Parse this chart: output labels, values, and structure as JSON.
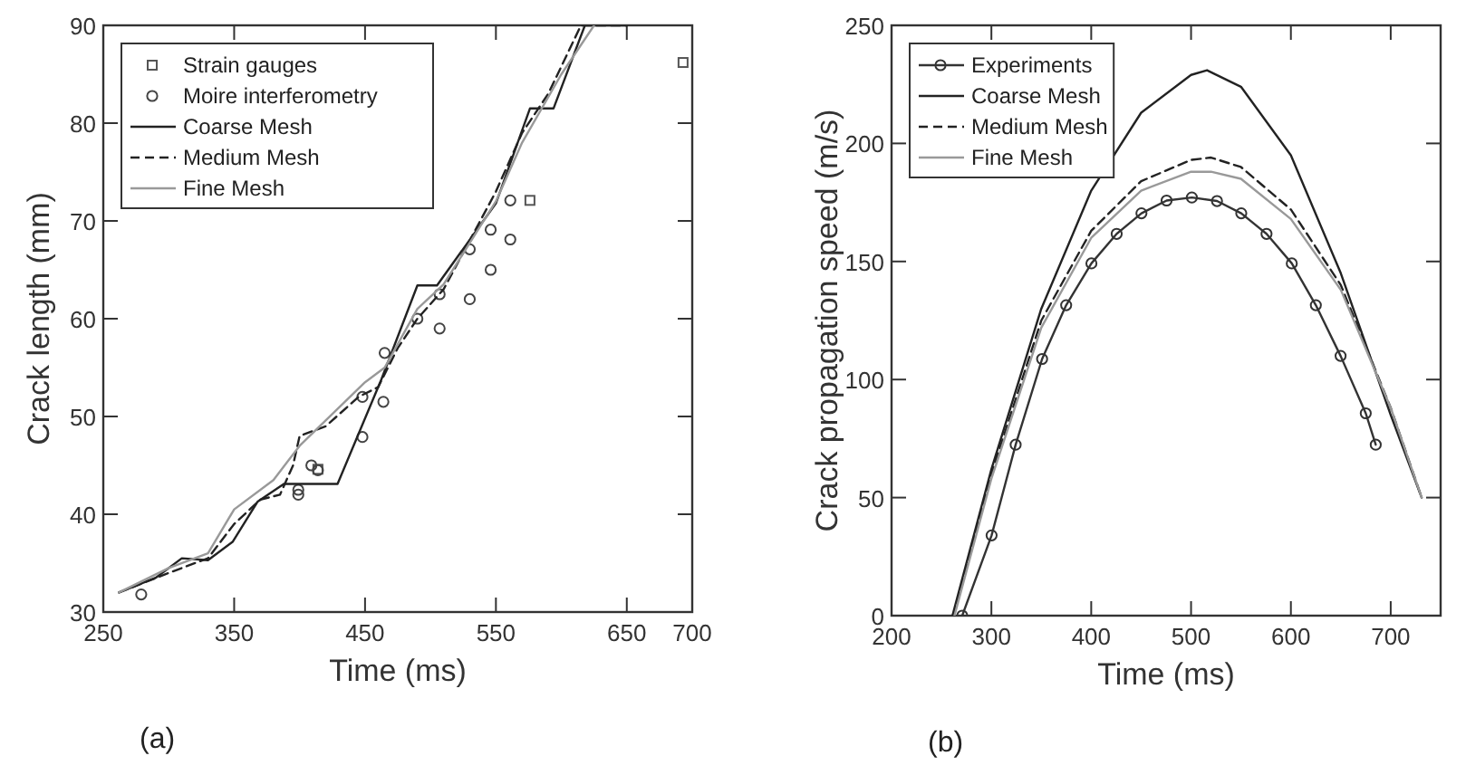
{
  "chart_data": [
    {
      "type": "line",
      "xlabel": "Time (ms)",
      "ylabel": "Crack length (mm)",
      "xlim": [
        250,
        700
      ],
      "xticks": [
        250,
        350,
        450,
        550,
        650,
        700
      ],
      "ylim": [
        30,
        90
      ],
      "yticks": [
        30,
        40,
        50,
        60,
        70,
        80,
        90
      ],
      "legend": "top left",
      "grid": false,
      "annotations": [
        "(a)"
      ],
      "series": [
        {
          "name": "Strain gauges",
          "type": "scatter",
          "marker": "square",
          "color": "#555555",
          "x": [
            414,
            576,
            693
          ],
          "values": [
            44.6,
            72.1,
            86.2
          ]
        },
        {
          "name": "Moire interferometry",
          "type": "scatter",
          "marker": "circle",
          "color": "#444444",
          "x": [
            279,
            399,
            399,
            409,
            414,
            448,
            448,
            464,
            465,
            490,
            507,
            507,
            530,
            530,
            546,
            546,
            561,
            561
          ],
          "values": [
            31.8,
            42.5,
            42,
            45,
            44.5,
            52,
            47.9,
            51.5,
            56.5,
            60,
            59,
            62.5,
            62,
            67.1,
            65,
            69.1,
            72.1,
            68.1
          ]
        },
        {
          "name": "Coarse Mesh",
          "color": "#222222",
          "line_style": "solid",
          "x": [
            262,
            290,
            310,
            330,
            349,
            368,
            388,
            429,
            462.5,
            490,
            505,
            550,
            576,
            594,
            618,
            650
          ],
          "values": [
            32,
            33.5,
            35.5,
            35.3,
            37.2,
            41.3,
            43.1,
            43.1,
            53.8,
            63.4,
            63.4,
            71.8,
            81.5,
            81.5,
            90,
            90
          ]
        },
        {
          "name": "Medium Mesh",
          "color": "#222222",
          "line_style": "dashed",
          "x": [
            262,
            300,
            330,
            350,
            370,
            385,
            395,
            400,
            420,
            445,
            460,
            475,
            490,
            510,
            530,
            550,
            570,
            590,
            615,
            650
          ],
          "values": [
            32,
            34,
            35.5,
            39,
            41.5,
            42,
            45,
            48,
            49,
            52,
            53,
            57,
            60,
            63,
            68,
            73,
            79,
            83,
            90,
            90
          ]
        },
        {
          "name": "Fine Mesh",
          "color": "#999999",
          "line_style": "solid",
          "x": [
            262,
            300,
            330,
            350,
            380,
            400,
            450,
            465,
            490,
            510,
            550,
            570,
            600,
            625
          ],
          "values": [
            32,
            34.5,
            36,
            40.5,
            43.5,
            47,
            53.5,
            55,
            61,
            63.5,
            72,
            78,
            85,
            90
          ]
        }
      ]
    },
    {
      "type": "line",
      "xlabel": "Time (ms)",
      "ylabel": "Crack propagation speed (m/s)",
      "xlim": [
        200,
        750
      ],
      "xticks": [
        200,
        300,
        400,
        500,
        600,
        700
      ],
      "ylim": [
        0,
        250
      ],
      "yticks": [
        0,
        50,
        100,
        150,
        200,
        250
      ],
      "legend": "top left",
      "grid": false,
      "annotations": [
        "(b)"
      ],
      "series": [
        {
          "name": "Experiments",
          "color": "#333333",
          "line_style": "solid",
          "marker": "circle",
          "x": [
            270.8,
            300.2,
            324.3,
            350.8,
            374.9,
            400.2,
            425.5,
            450.3,
            475.5,
            500.8,
            526,
            550.3,
            575.6,
            600.9,
            625,
            649.8,
            675,
            685
          ],
          "values": [
            0,
            34,
            72.4,
            108.7,
            131.5,
            149.2,
            161.7,
            170.4,
            175.8,
            177.1,
            175.6,
            170.4,
            161.7,
            149.2,
            131.5,
            110,
            85.7,
            72.4
          ]
        },
        {
          "name": "Coarse Mesh",
          "color": "#222222",
          "line_style": "solid",
          "x": [
            261,
            300,
            350,
            400,
            450,
            500,
            516,
            550,
            600,
            650,
            700,
            731
          ],
          "values": [
            0,
            62,
            130,
            180,
            213,
            229,
            231,
            224,
            195,
            145,
            85,
            50
          ]
        },
        {
          "name": "Medium Mesh",
          "color": "#222222",
          "line_style": "dashed",
          "x": [
            262,
            300,
            350,
            400,
            450,
            500,
            520,
            550,
            600,
            650,
            700,
            731
          ],
          "values": [
            0,
            60,
            125,
            163,
            184,
            193,
            194,
            190,
            172,
            140,
            88,
            50
          ]
        },
        {
          "name": "Fine Mesh",
          "color": "#999999",
          "line_style": "solid",
          "x": [
            263,
            300,
            350,
            400,
            450,
            500,
            520,
            550,
            600,
            650,
            700,
            731
          ],
          "values": [
            0,
            58,
            122,
            160,
            180,
            188,
            188,
            185,
            168,
            138,
            88,
            50
          ]
        }
      ]
    }
  ]
}
